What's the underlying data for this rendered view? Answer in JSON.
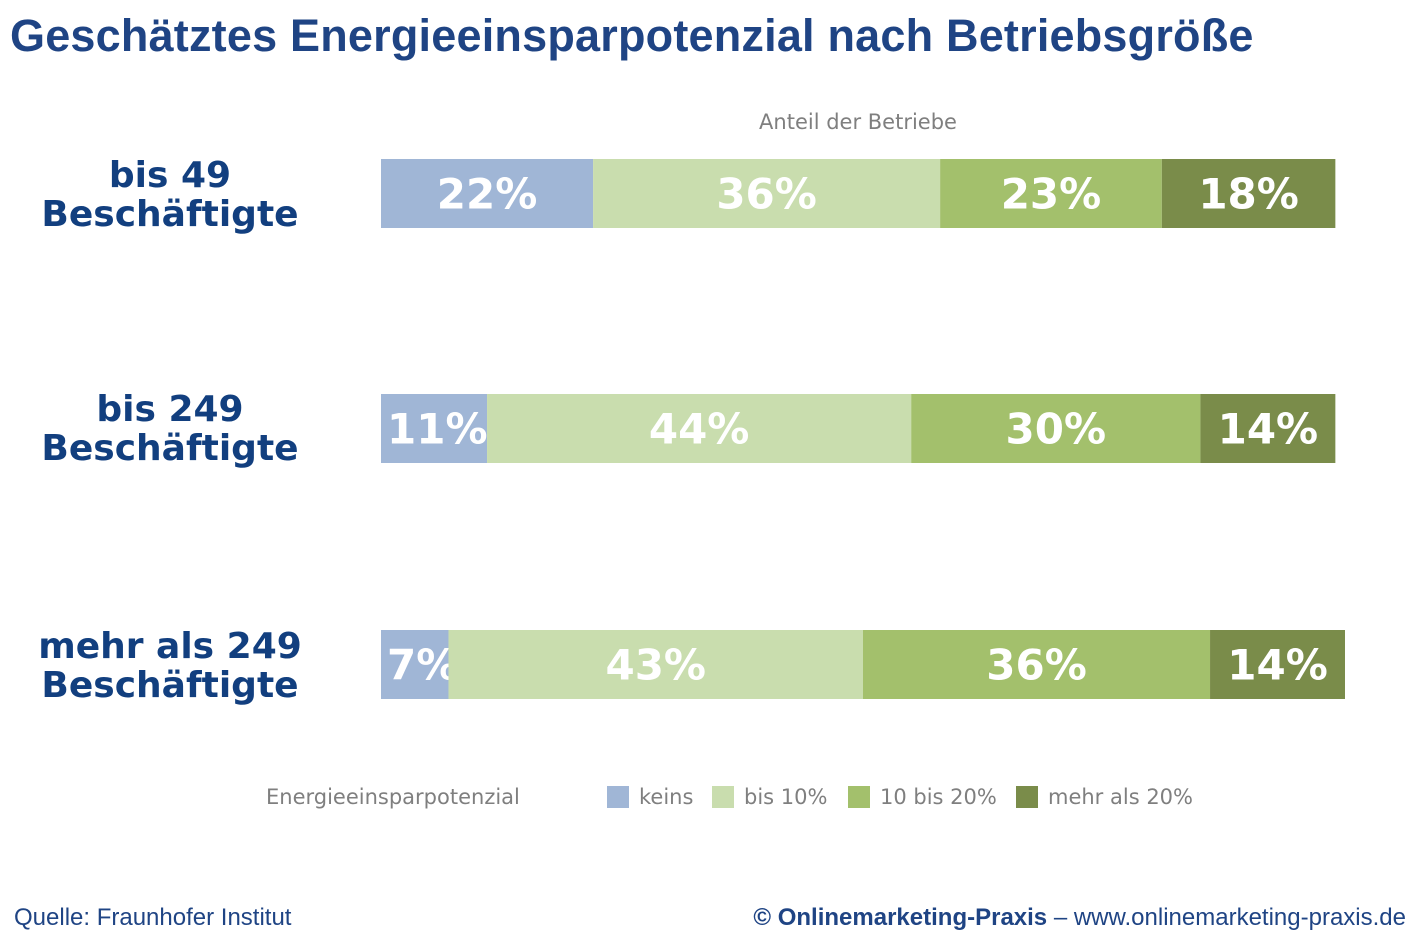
{
  "chart_data": {
    "type": "bar",
    "orientation": "horizontal",
    "stacked": true,
    "title": "Geschätztes Energieeinsparpotenzial nach Betriebsgröße",
    "xlabel": "Anteil der Betriebe",
    "ylabel": "",
    "legend_title": "Energieeinsparpotenzial",
    "legend_position": "bottom",
    "grid": false,
    "unit": "%",
    "categories": [
      [
        "bis 49",
        "Beschäftigte"
      ],
      [
        "bis 249",
        "Beschäftigte"
      ],
      [
        "mehr als 249",
        "Beschäftigte"
      ]
    ],
    "series": [
      {
        "name": "keins",
        "color": "#a0b6d6",
        "values": [
          22,
          11,
          7
        ]
      },
      {
        "name": "bis 10%",
        "color": "#c9ddae",
        "values": [
          36,
          44,
          43
        ]
      },
      {
        "name": "10 bis 20%",
        "color": "#a3c06c",
        "values": [
          23,
          30,
          36
        ]
      },
      {
        "name": "mehr als 20%",
        "color": "#7a8c4a",
        "values": [
          18,
          14,
          14
        ]
      }
    ],
    "data_labels": [
      [
        "22%",
        "36%",
        "23%",
        "18%"
      ],
      [
        "11%",
        "44%",
        "30%",
        "14%"
      ],
      [
        "7%",
        "43%",
        "36%",
        "14%"
      ]
    ]
  },
  "colors": {
    "title": "#1f4484",
    "category_label": "#123f7f",
    "axis_text": "#7f7f7f",
    "data_label": "#ffffff"
  },
  "footer": {
    "source": "Quelle: Fraunhofer Institut",
    "copyright_brand": "© Onlinemarketing-Praxis",
    "copyright_sep": " – ",
    "copyright_url": "www.onlinemarketing-praxis.de"
  }
}
